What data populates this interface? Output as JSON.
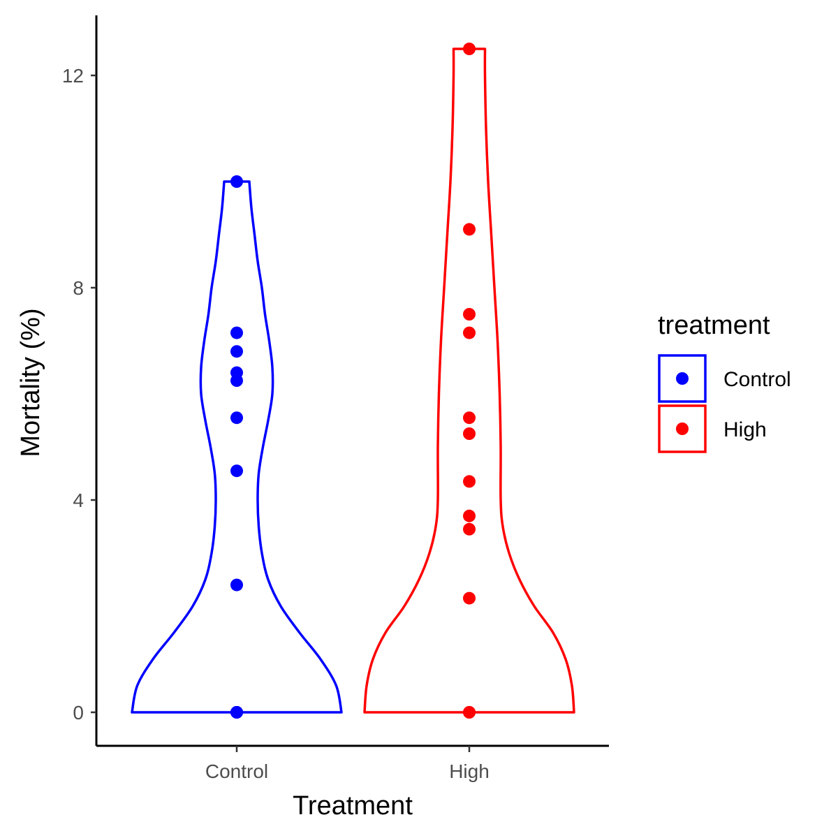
{
  "chart_data": {
    "type": "violin",
    "title": "",
    "xlabel": "Treatment",
    "ylabel": "Mortality (%)",
    "ylim": [
      -0.6,
      13.0
    ],
    "yticks": [
      0,
      4,
      8,
      12
    ],
    "categories": [
      "Control",
      "High"
    ],
    "series": [
      {
        "name": "Control",
        "color": "#0000ff",
        "points": [
          0,
          0,
          0,
          2.4,
          4.55,
          5.55,
          6.25,
          6.4,
          6.8,
          7.15,
          10.0
        ],
        "violin_profile": [
          [
            0.0,
            1.0
          ],
          [
            0.5,
            0.95
          ],
          [
            1.0,
            0.8
          ],
          [
            1.5,
            0.6
          ],
          [
            2.0,
            0.42
          ],
          [
            2.5,
            0.3
          ],
          [
            3.0,
            0.24
          ],
          [
            3.5,
            0.21
          ],
          [
            4.0,
            0.2
          ],
          [
            4.5,
            0.21
          ],
          [
            5.0,
            0.25
          ],
          [
            5.5,
            0.3
          ],
          [
            6.0,
            0.34
          ],
          [
            6.5,
            0.34
          ],
          [
            7.0,
            0.31
          ],
          [
            7.5,
            0.27
          ],
          [
            8.0,
            0.24
          ],
          [
            8.5,
            0.2
          ],
          [
            9.0,
            0.17
          ],
          [
            9.5,
            0.14
          ],
          [
            10.0,
            0.12
          ]
        ]
      },
      {
        "name": "High",
        "color": "#ff0000",
        "points": [
          0,
          0,
          2.15,
          3.45,
          3.7,
          4.35,
          5.25,
          5.55,
          7.15,
          7.5,
          9.1,
          12.5
        ],
        "violin_profile": [
          [
            0.0,
            1.0
          ],
          [
            0.5,
            0.98
          ],
          [
            1.0,
            0.92
          ],
          [
            1.5,
            0.8
          ],
          [
            2.0,
            0.62
          ],
          [
            2.5,
            0.48
          ],
          [
            3.0,
            0.38
          ],
          [
            3.5,
            0.32
          ],
          [
            4.0,
            0.3
          ],
          [
            5.0,
            0.3
          ],
          [
            6.0,
            0.29
          ],
          [
            7.0,
            0.27
          ],
          [
            8.0,
            0.24
          ],
          [
            9.0,
            0.21
          ],
          [
            10.0,
            0.18
          ],
          [
            11.0,
            0.16
          ],
          [
            12.0,
            0.15
          ],
          [
            12.5,
            0.15
          ]
        ]
      }
    ],
    "legend": {
      "title": "treatment",
      "position": "right",
      "items": [
        {
          "label": "Control",
          "color": "#0000ff"
        },
        {
          "label": "High",
          "color": "#ff0000"
        }
      ]
    }
  }
}
